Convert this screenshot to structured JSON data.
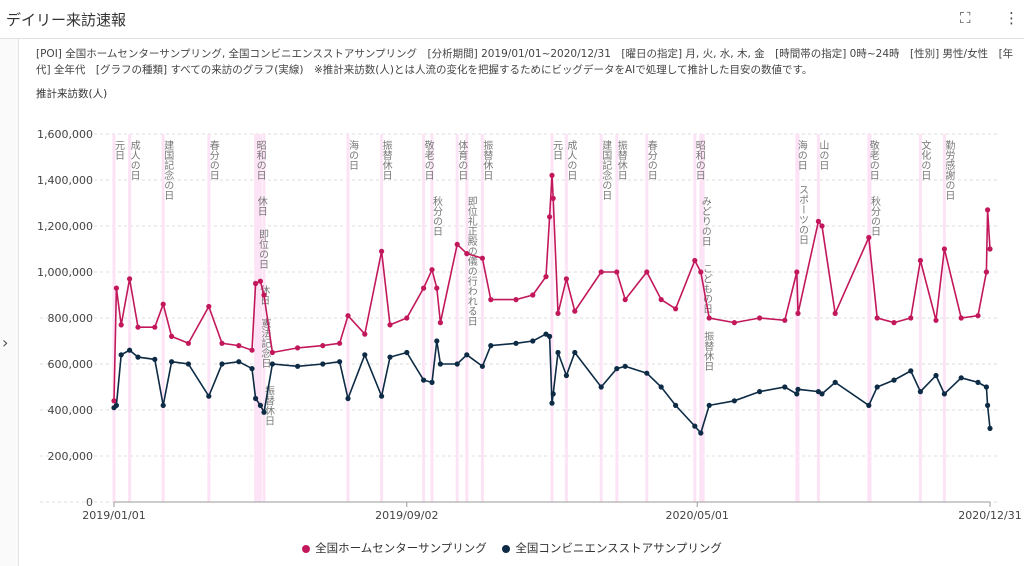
{
  "header": {
    "title": "デイリー来訪速報",
    "fullscreen_icon": "fullscreen-icon",
    "menu_icon": "more-vert-icon"
  },
  "sidebar": {
    "expand_icon": "chevron-right-icon",
    "expand_glyph": "›"
  },
  "conditions": "[POI] 全国ホームセンターサンプリング, 全国コンビニエンスストアサンプリング　[分析期間] 2019/01/01~2020/12/31　[曜日の指定] 月, 火, 水, 木, 金　[時間帯の指定] 0時~24時　[性別] 男性/女性　[年代] 全年代　[グラフの種類] すべての来訪のグラフ(実線)　※推計来訪数(人)とは人流の変化を把握するためにビッグデータをAIで処理して推計した目安の数値です。",
  "chart_data": {
    "type": "line",
    "ylabel": "推計来訪数(人)",
    "ylim": [
      0,
      1600000
    ],
    "yticks": [
      0,
      200000,
      400000,
      600000,
      800000,
      1000000,
      1200000,
      1400000,
      1600000
    ],
    "ytick_labels": [
      "0",
      "200,000",
      "400,000",
      "600,000",
      "800,000",
      "1,000,000",
      "1,200,000",
      "1,400,000",
      "1,600,000"
    ],
    "xlim": [
      "2019-01-01",
      "2020-12-31"
    ],
    "xticks": [
      "2019-01-01",
      "2019-09-02",
      "2020-05-01",
      "2020-12-31"
    ],
    "xtick_labels": [
      "2019/01/01",
      "2019/09/02",
      "2020/05/01",
      "2020/12/31"
    ],
    "grid": true,
    "legend_position": "bottom",
    "x": [
      "2019-01-01",
      "2019-01-03",
      "2019-01-07",
      "2019-01-14",
      "2019-01-21",
      "2019-02-04",
      "2019-02-11",
      "2019-02-18",
      "2019-03-04",
      "2019-03-21",
      "2019-04-01",
      "2019-04-15",
      "2019-04-26",
      "2019-04-29",
      "2019-05-03",
      "2019-05-06",
      "2019-05-13",
      "2019-06-03",
      "2019-06-24",
      "2019-07-08",
      "2019-07-15",
      "2019-07-29",
      "2019-08-12",
      "2019-08-19",
      "2019-09-02",
      "2019-09-16",
      "2019-09-23",
      "2019-09-27",
      "2019-09-30",
      "2019-10-14",
      "2019-10-22",
      "2019-11-04",
      "2019-11-11",
      "2019-12-02",
      "2019-12-16",
      "2019-12-27",
      "2019-12-30",
      "2020-01-01",
      "2020-01-02",
      "2020-01-06",
      "2020-01-13",
      "2020-01-20",
      "2020-02-11",
      "2020-02-24",
      "2020-03-02",
      "2020-03-20",
      "2020-04-01",
      "2020-04-13",
      "2020-04-29",
      "2020-05-04",
      "2020-05-11",
      "2020-06-01",
      "2020-06-22",
      "2020-07-13",
      "2020-07-23",
      "2020-07-24",
      "2020-08-10",
      "2020-08-13",
      "2020-08-24",
      "2020-09-21",
      "2020-09-28",
      "2020-10-12",
      "2020-10-26",
      "2020-11-03",
      "2020-11-16",
      "2020-11-23",
      "2020-12-07",
      "2020-12-21",
      "2020-12-28",
      "2020-12-29",
      "2020-12-31"
    ],
    "series": [
      {
        "name": "全国ホームセンターサンプリング",
        "color": "#c2185b",
        "values": [
          440000,
          930000,
          770000,
          970000,
          760000,
          760000,
          860000,
          720000,
          690000,
          850000,
          690000,
          680000,
          660000,
          950000,
          960000,
          900000,
          650000,
          670000,
          680000,
          690000,
          810000,
          730000,
          1090000,
          770000,
          800000,
          930000,
          1010000,
          930000,
          780000,
          1120000,
          1080000,
          1060000,
          880000,
          880000,
          900000,
          980000,
          1240000,
          1420000,
          1320000,
          820000,
          970000,
          830000,
          1000000,
          1000000,
          880000,
          1000000,
          880000,
          840000,
          1050000,
          1000000,
          800000,
          780000,
          800000,
          790000,
          1000000,
          820000,
          1220000,
          1200000,
          820000,
          1150000,
          800000,
          780000,
          800000,
          1050000,
          790000,
          1100000,
          800000,
          810000,
          1000000,
          1270000,
          1100000
        ]
      },
      {
        "name": "全国コンビニエンスストアサンプリング",
        "color": "#0d2b45",
        "values": [
          410000,
          420000,
          640000,
          660000,
          630000,
          620000,
          420000,
          610000,
          600000,
          460000,
          600000,
          610000,
          580000,
          450000,
          420000,
          390000,
          600000,
          590000,
          600000,
          610000,
          450000,
          640000,
          460000,
          630000,
          650000,
          530000,
          520000,
          700000,
          600000,
          600000,
          640000,
          590000,
          680000,
          690000,
          700000,
          730000,
          720000,
          430000,
          470000,
          650000,
          550000,
          650000,
          500000,
          580000,
          590000,
          560000,
          500000,
          420000,
          330000,
          300000,
          420000,
          440000,
          480000,
          500000,
          470000,
          490000,
          480000,
          470000,
          520000,
          420000,
          500000,
          530000,
          570000,
          480000,
          550000,
          470000,
          540000,
          520000,
          500000,
          420000,
          320000
        ]
      }
    ],
    "holidays": [
      {
        "date": "2019-01-01",
        "name": "元日"
      },
      {
        "date": "2019-01-14",
        "name": "成人の日"
      },
      {
        "date": "2019-02-11",
        "name": "建国記念の日"
      },
      {
        "date": "2019-03-21",
        "name": "春分の日"
      },
      {
        "date": "2019-04-29",
        "name": "昭和の日"
      },
      {
        "date": "2019-04-30",
        "name": "休日"
      },
      {
        "date": "2019-05-01",
        "name": "即位の日"
      },
      {
        "date": "2019-05-02",
        "name": "休日"
      },
      {
        "date": "2019-05-03",
        "name": "憲法記念日"
      },
      {
        "date": "2019-05-06",
        "name": "振替休日"
      },
      {
        "date": "2019-07-15",
        "name": "海の日"
      },
      {
        "date": "2019-08-12",
        "name": "振替休日"
      },
      {
        "date": "2019-09-16",
        "name": "敬老の日"
      },
      {
        "date": "2019-09-23",
        "name": "秋分の日"
      },
      {
        "date": "2019-10-14",
        "name": "体育の日"
      },
      {
        "date": "2019-10-22",
        "name": "即位礼正殿の儀の行われる日"
      },
      {
        "date": "2019-11-04",
        "name": "振替休日"
      },
      {
        "date": "2020-01-01",
        "name": "元日"
      },
      {
        "date": "2020-01-13",
        "name": "成人の日"
      },
      {
        "date": "2020-02-11",
        "name": "建国記念の日"
      },
      {
        "date": "2020-02-24",
        "name": "振替休日"
      },
      {
        "date": "2020-03-20",
        "name": "春分の日"
      },
      {
        "date": "2020-04-29",
        "name": "昭和の日"
      },
      {
        "date": "2020-05-04",
        "name": "みどりの日"
      },
      {
        "date": "2020-05-05",
        "name": "こどもの日"
      },
      {
        "date": "2020-05-06",
        "name": "振替休日"
      },
      {
        "date": "2020-07-23",
        "name": "海の日"
      },
      {
        "date": "2020-07-24",
        "name": "スポーツの日"
      },
      {
        "date": "2020-08-10",
        "name": "山の日"
      },
      {
        "date": "2020-09-21",
        "name": "敬老の日"
      },
      {
        "date": "2020-09-22",
        "name": "秋分の日"
      },
      {
        "date": "2020-11-03",
        "name": "文化の日"
      },
      {
        "date": "2020-11-23",
        "name": "勤労感謝の日"
      }
    ]
  }
}
